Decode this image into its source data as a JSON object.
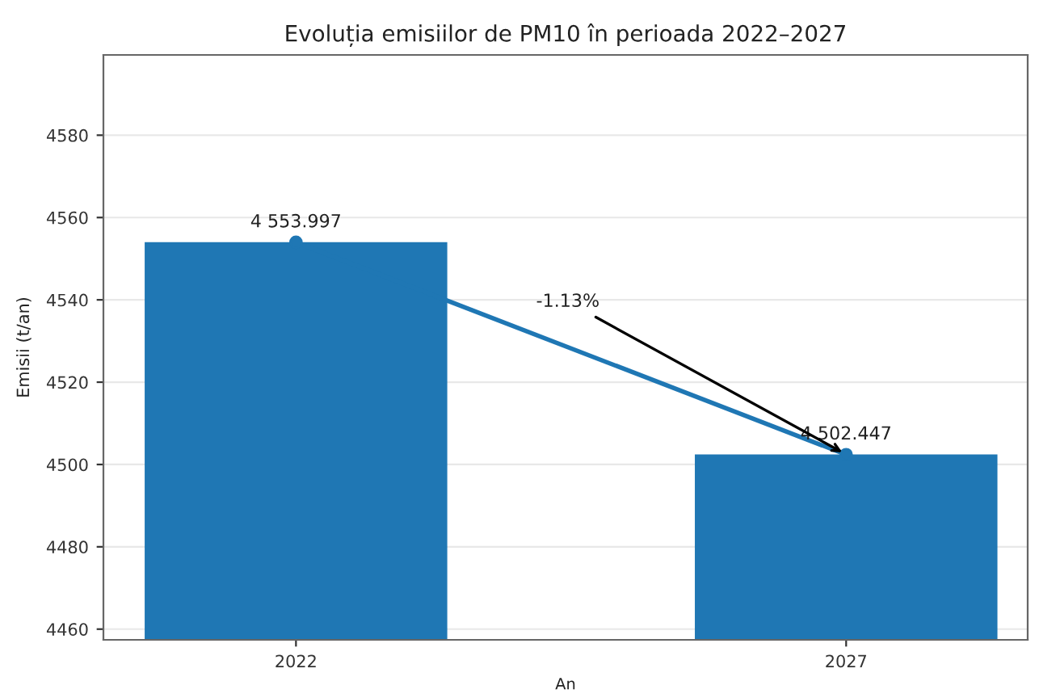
{
  "chart_data": {
    "type": "bar",
    "title": "Evoluția emisiilor de PM10 în perioada 2022–2027",
    "xlabel": "An",
    "ylabel": "Emisii (t/an)",
    "categories": [
      "2022",
      "2027"
    ],
    "series": [
      {
        "color": "#1f77b4",
        "values": [
          4553.997,
          4502.447
        ],
        "value_labels": [
          "4 553.997",
          "4 502.447"
        ]
      },
      {
        "type": "line",
        "color": "#1f77b4",
        "values": [
          4554,
          4502.4
        ]
      }
    ],
    "marker": "circle",
    "ylim": [
      4457.4,
      4599.5
    ],
    "yticks": [
      4460,
      4480,
      4500,
      4520,
      4540,
      4560,
      4580
    ],
    "grid": "y",
    "annotations": [
      {
        "text": "-1.13%",
        "x": "2027",
        "y": 4502.447
      }
    ]
  }
}
